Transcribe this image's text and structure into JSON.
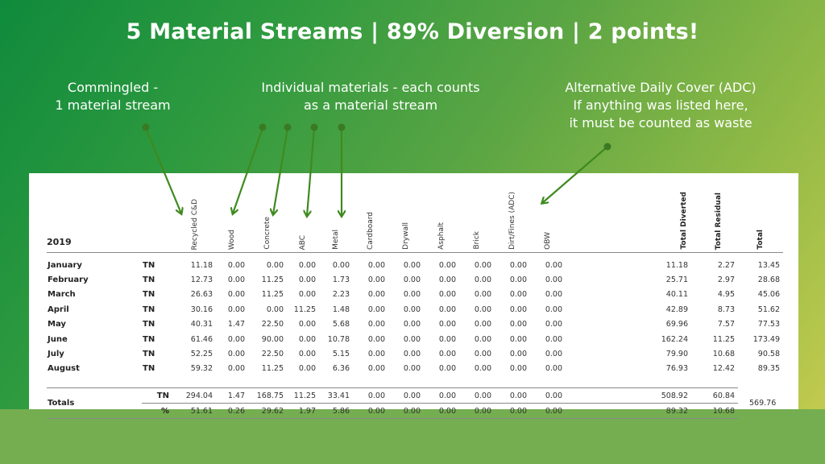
{
  "headline": "5 Material Streams  |  89% Diversion  |  2 points!",
  "captions": {
    "commingled": [
      "Commingled -",
      "1 material stream"
    ],
    "individual": [
      "Individual materials - each counts",
      "as a material stream"
    ],
    "adc": [
      "Alternative Daily Cover (ADC)",
      "If anything was listed here,",
      "it must be counted as waste"
    ]
  },
  "colors": {
    "gradient_start": "#0f8a3c",
    "gradient_end": "#c9cd4f",
    "bottom_band": "#74ae50",
    "arrow": "#3f8a1f"
  },
  "table": {
    "year": "2019",
    "columns": [
      "Recycled C&D",
      "Wood",
      "Concrete",
      "ABC",
      "Metal",
      "Cardboard",
      "Drywall",
      "Asphalt",
      "Brick",
      "Dirt/Fines (ADC)",
      "OBW",
      "Total Diverted",
      "Total Residual",
      "Total"
    ],
    "rows": [
      {
        "month": "January",
        "unit": "TN",
        "values": [
          "11.18",
          "0.00",
          "0.00",
          "0.00",
          "0.00",
          "0.00",
          "0.00",
          "0.00",
          "0.00",
          "0.00",
          "0.00",
          "11.18",
          "2.27",
          "13.45"
        ]
      },
      {
        "month": "February",
        "unit": "TN",
        "values": [
          "12.73",
          "0.00",
          "11.25",
          "0.00",
          "1.73",
          "0.00",
          "0.00",
          "0.00",
          "0.00",
          "0.00",
          "0.00",
          "25.71",
          "2.97",
          "28.68"
        ]
      },
      {
        "month": "March",
        "unit": "TN",
        "values": [
          "26.63",
          "0.00",
          "11.25",
          "0.00",
          "2.23",
          "0.00",
          "0.00",
          "0.00",
          "0.00",
          "0.00",
          "0.00",
          "40.11",
          "4.95",
          "45.06"
        ]
      },
      {
        "month": "April",
        "unit": "TN",
        "values": [
          "30.16",
          "0.00",
          "0.00",
          "11.25",
          "1.48",
          "0.00",
          "0.00",
          "0.00",
          "0.00",
          "0.00",
          "0.00",
          "42.89",
          "8.73",
          "51.62"
        ]
      },
      {
        "month": "May",
        "unit": "TN",
        "values": [
          "40.31",
          "1.47",
          "22.50",
          "0.00",
          "5.68",
          "0.00",
          "0.00",
          "0.00",
          "0.00",
          "0.00",
          "0.00",
          "69.96",
          "7.57",
          "77.53"
        ]
      },
      {
        "month": "June",
        "unit": "TN",
        "values": [
          "61.46",
          "0.00",
          "90.00",
          "0.00",
          "10.78",
          "0.00",
          "0.00",
          "0.00",
          "0.00",
          "0.00",
          "0.00",
          "162.24",
          "11.25",
          "173.49"
        ]
      },
      {
        "month": "July",
        "unit": "TN",
        "values": [
          "52.25",
          "0.00",
          "22.50",
          "0.00",
          "5.15",
          "0.00",
          "0.00",
          "0.00",
          "0.00",
          "0.00",
          "0.00",
          "79.90",
          "10.68",
          "90.58"
        ]
      },
      {
        "month": "August",
        "unit": "TN",
        "values": [
          "59.32",
          "0.00",
          "11.25",
          "0.00",
          "6.36",
          "0.00",
          "0.00",
          "0.00",
          "0.00",
          "0.00",
          "0.00",
          "76.93",
          "12.42",
          "89.35"
        ]
      }
    ],
    "totals": {
      "label": "Totals",
      "tn": {
        "unit": "TN",
        "values": [
          "294.04",
          "1.47",
          "168.75",
          "11.25",
          "33.41",
          "0.00",
          "0.00",
          "0.00",
          "0.00",
          "0.00",
          "0.00",
          "508.92",
          "60.84"
        ]
      },
      "pct": {
        "unit": "%",
        "values": [
          "51.61",
          "0.26",
          "29.62",
          "1.97",
          "5.86",
          "0.00",
          "0.00",
          "0.00",
          "0.00",
          "0.00",
          "0.00",
          "89.32",
          "10.68"
        ]
      },
      "grand_total": "569.76"
    }
  }
}
